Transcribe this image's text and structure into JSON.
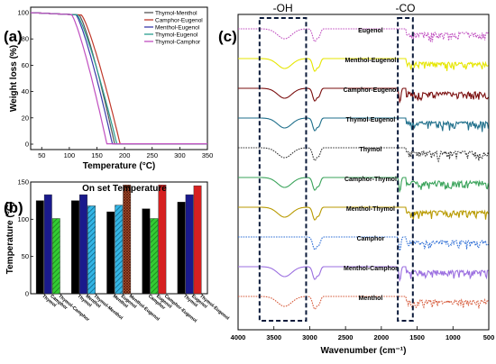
{
  "panels": {
    "a": {
      "letter": "(a)"
    },
    "b": {
      "letter": "(b)"
    },
    "c": {
      "letter": "(c)"
    }
  },
  "colors": {
    "thymol_menthol": "#555555",
    "camphor_eugenol": "#c0392b",
    "menthol_eugenol": "#3a3aaa",
    "thymol_eugenol": "#2a9d8f",
    "thymol_camphor": "#c04fc0",
    "bar_black": "#000000",
    "bar_navy": "#1a1a8c",
    "bar_green": "#33cc33",
    "bar_cyan": "#33b5e5",
    "bar_red": "#d62020",
    "bar_darkred": "#a0401a"
  },
  "chart_data": [
    {
      "type": "line",
      "panel": "a",
      "xlabel": "Temperature (°C)",
      "ylabel": "Weight loss (%)",
      "xlim": [
        30,
        350
      ],
      "ylim": [
        0,
        100
      ],
      "xticks": [
        "50",
        "100",
        "150",
        "200",
        "250",
        "300",
        "350"
      ],
      "yticks": [
        "0",
        "20",
        "40",
        "60",
        "80",
        "100"
      ],
      "series": [
        {
          "name": "Thymol-Menthol",
          "onset": 118,
          "end": 182
        },
        {
          "name": "Camphor-Eugenol",
          "onset": 122,
          "end": 192
        },
        {
          "name": "Menthol-Eugenol",
          "onset": 112,
          "end": 178
        },
        {
          "name": "Thymol-Eugenol",
          "onset": 114,
          "end": 186
        },
        {
          "name": "Thymol-Camphor",
          "onset": 104,
          "end": 168
        }
      ]
    },
    {
      "type": "bar",
      "panel": "b",
      "title": "On set Temperature",
      "ylabel": "Temperature (°C)",
      "ylim": [
        0,
        150
      ],
      "yticks": [
        "0",
        "50",
        "100",
        "150"
      ],
      "groups": [
        {
          "bars": [
            {
              "label": "Thymol",
              "value": 125
            },
            {
              "label": "Camphor",
              "value": 133
            },
            {
              "label": "Thymol-Camphor",
              "value": 101
            }
          ]
        },
        {
          "bars": [
            {
              "label": "Thymol",
              "value": 125
            },
            {
              "label": "Menthol",
              "value": 133
            },
            {
              "label": "Thymol-Menthol",
              "value": 118
            }
          ]
        },
        {
          "bars": [
            {
              "label": "Menthol",
              "value": 110
            },
            {
              "label": "Eugenol",
              "value": 119
            },
            {
              "label": "Menthol-Eugenol",
              "value": 146
            }
          ]
        },
        {
          "bars": [
            {
              "label": "Camphor",
              "value": 114
            },
            {
              "label": "Eugenol",
              "value": 101
            },
            {
              "label": "Camphor-Eugenol",
              "value": 146
            }
          ]
        },
        {
          "bars": [
            {
              "label": "Thymol",
              "value": 123
            },
            {
              "label": "Eugenol",
              "value": 133
            },
            {
              "label": "Thymol-Eugenol",
              "value": 145
            }
          ]
        }
      ]
    },
    {
      "type": "line",
      "panel": "c",
      "xlabel": "Wavenumber (cm⁻¹)",
      "ylabel": "",
      "xlim": [
        4000,
        500
      ],
      "xticks": [
        "4000",
        "3500",
        "3000",
        "2500",
        "2000",
        "1500",
        "1000",
        "500"
      ],
      "regions": [
        {
          "label": "-OH",
          "from": 3700,
          "to": 3050
        },
        {
          "label": "-CO",
          "from": 1770,
          "to": 1560
        }
      ],
      "series": [
        {
          "name": "Eugenol",
          "color": "#c04fc0",
          "dashed": true
        },
        {
          "name": "Menthol-Eugenol",
          "color": "#e6e600",
          "dashed": false
        },
        {
          "name": "Camphor-Eugenol",
          "color": "#7a0e0e",
          "dashed": false
        },
        {
          "name": "Thymol-Eugenol",
          "color": "#1f6f8b",
          "dashed": false
        },
        {
          "name": "Thymol",
          "color": "#333333",
          "dashed": true
        },
        {
          "name": "Camphor-Thymol",
          "color": "#3aa35a",
          "dashed": false
        },
        {
          "name": "Menthol-Thymol",
          "color": "#b89a00",
          "dashed": false
        },
        {
          "name": "Camphor",
          "color": "#2f6fd6",
          "dashed": true
        },
        {
          "name": "Menthol-Camphor",
          "color": "#9b6fe0",
          "dashed": false
        },
        {
          "name": "Menthol",
          "color": "#d65a3a",
          "dashed": true
        }
      ]
    }
  ]
}
